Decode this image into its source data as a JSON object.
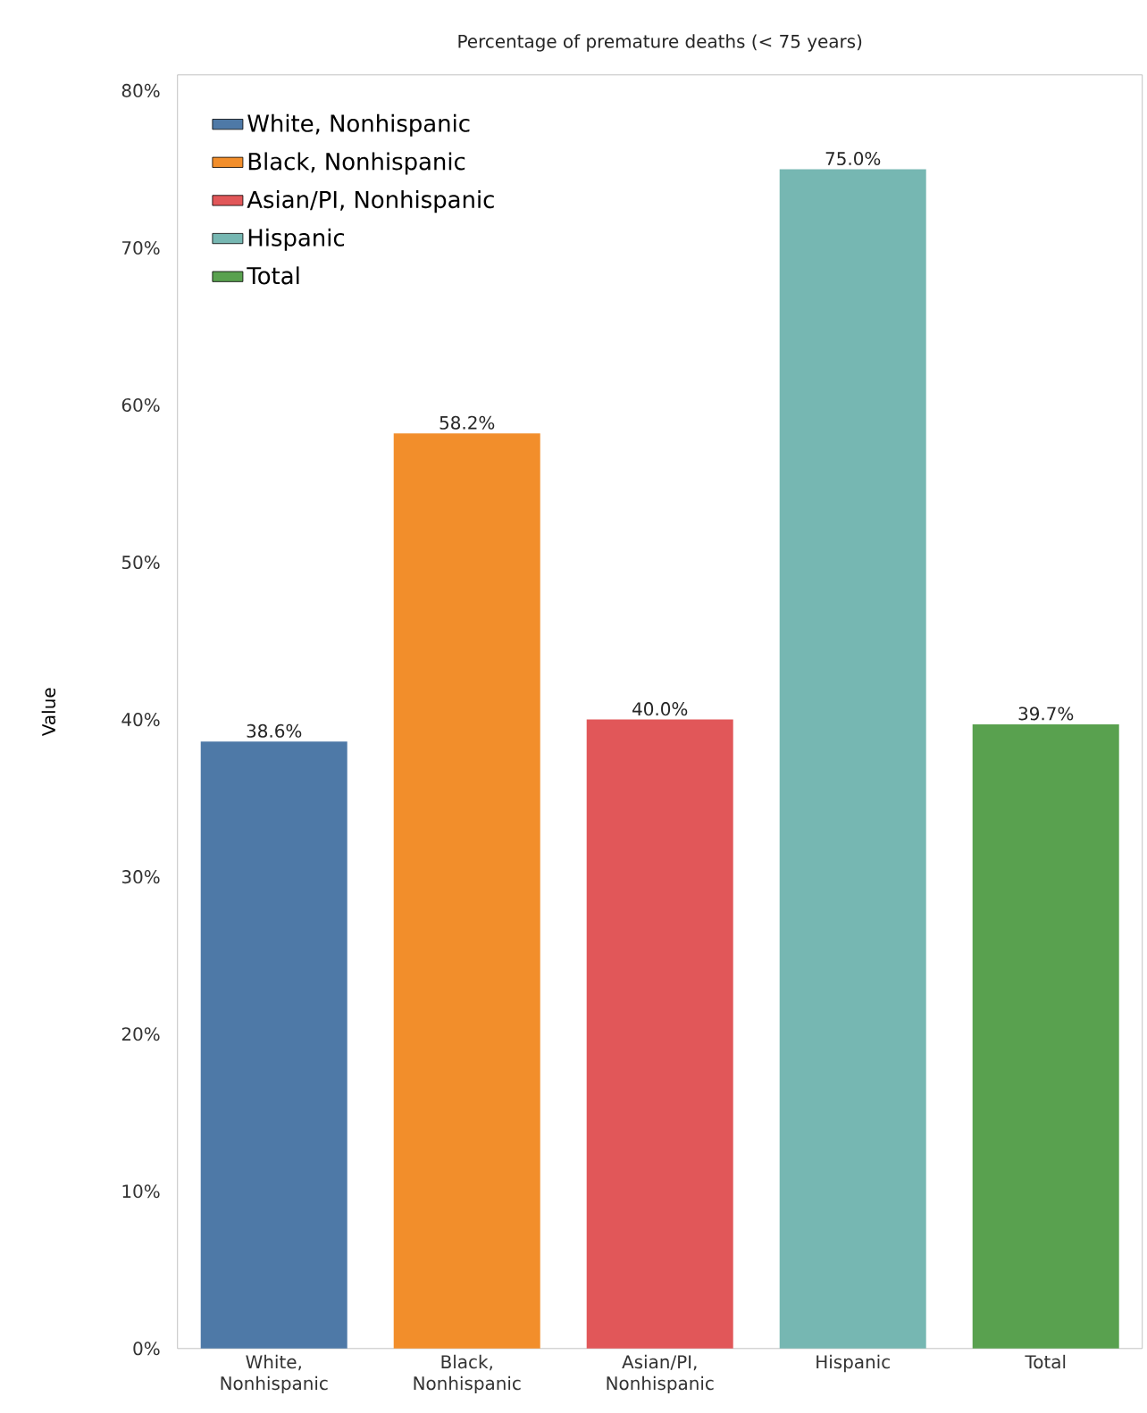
{
  "chart_data": {
    "type": "bar",
    "title": "Percentage of premature deaths (< 75 years)",
    "ylabel": "Value",
    "categories": [
      "White, Nonhispanic",
      "Black, Nonhispanic",
      "Asian/PI, Nonhispanic",
      "Hispanic",
      "Total"
    ],
    "series": [
      {
        "name": "White, Nonhispanic",
        "color": "#4e79a7",
        "values": [
          38.6,
          null,
          null,
          null,
          null
        ],
        "value_labels": [
          "38.6%",
          null,
          null,
          null,
          null
        ]
      },
      {
        "name": "Black, Nonhispanic",
        "color": "#f28e2b",
        "values": [
          null,
          58.2,
          null,
          null,
          null
        ],
        "value_labels": [
          null,
          "58.2%",
          null,
          null,
          null
        ]
      },
      {
        "name": "Asian/PI, Nonhispanic",
        "color": "#e15759",
        "values": [
          null,
          null,
          40.0,
          null,
          null
        ],
        "value_labels": [
          null,
          null,
          "40.0%",
          null,
          null
        ]
      },
      {
        "name": "Hispanic",
        "color": "#76b7b2",
        "values": [
          null,
          null,
          null,
          75.0,
          null
        ],
        "value_labels": [
          null,
          null,
          null,
          "75.0%",
          null
        ]
      },
      {
        "name": "Total",
        "color": "#59a14f",
        "values": [
          null,
          null,
          null,
          null,
          39.7
        ],
        "value_labels": [
          null,
          null,
          null,
          null,
          "39.7%"
        ]
      }
    ],
    "ylim": [
      0,
      81
    ],
    "yticks": [
      {
        "value": 0,
        "label": "0%"
      },
      {
        "value": 10,
        "label": "10%"
      },
      {
        "value": 20,
        "label": "20%"
      },
      {
        "value": 30,
        "label": "30%"
      },
      {
        "value": 40,
        "label": "40%"
      },
      {
        "value": 50,
        "label": "50%"
      },
      {
        "value": 60,
        "label": "60%"
      },
      {
        "value": 70,
        "label": "70%"
      },
      {
        "value": 80,
        "label": "80%"
      }
    ],
    "grid": false,
    "legend": "top left"
  }
}
